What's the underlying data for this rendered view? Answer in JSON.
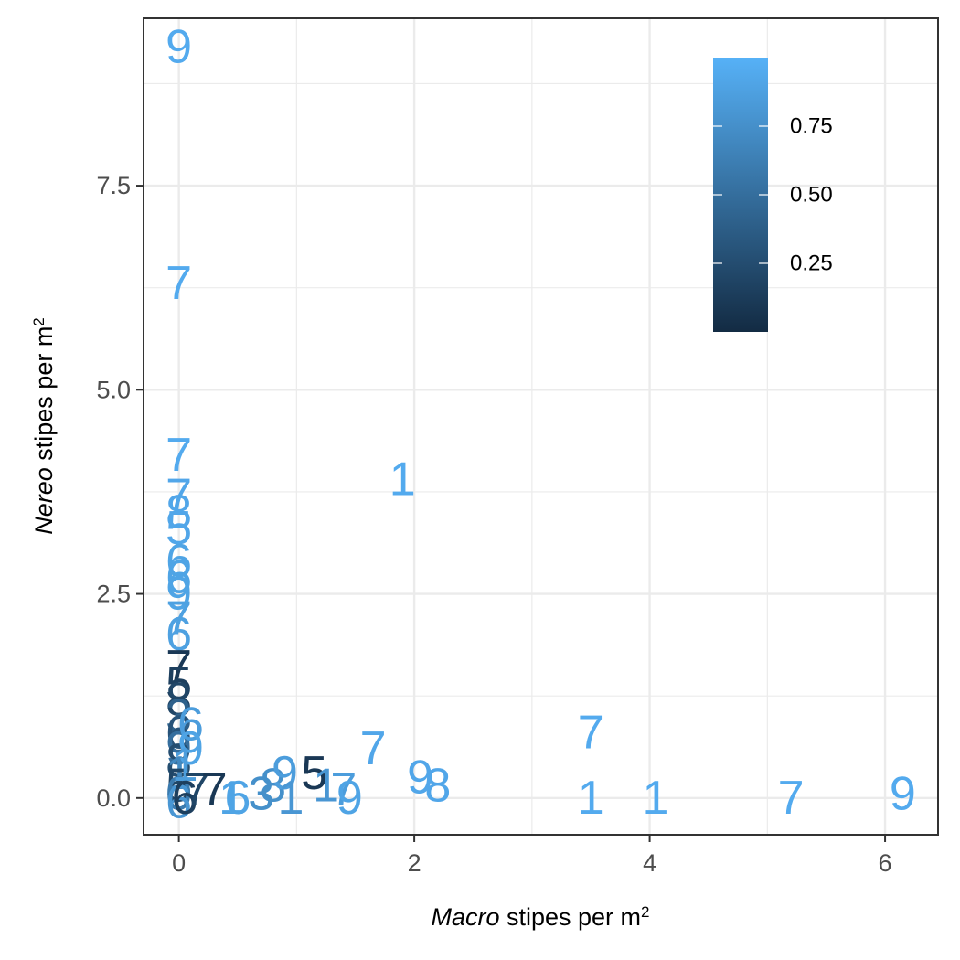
{
  "chart_data": {
    "type": "scatter",
    "title": "",
    "xlabel": {
      "italic": "Macro",
      "rest": " stipes per m",
      "sup": "2"
    },
    "ylabel": {
      "italic": "Nereo",
      "rest": " stipes per m",
      "sup": "2"
    },
    "xlim": [
      -0.3,
      6.45
    ],
    "ylim": [
      -0.45,
      9.55
    ],
    "x_ticks": [
      0,
      2,
      4,
      6
    ],
    "x_tick_labels": [
      "0",
      "2",
      "4",
      "6"
    ],
    "y_ticks": [
      0,
      2.5,
      5,
      7.5
    ],
    "y_tick_labels": [
      "0.0",
      "2.5",
      "5.0",
      "7.5"
    ],
    "grid": true,
    "legend": {
      "position": "top-right",
      "type": "colorbar",
      "range": [
        0,
        1
      ],
      "breaks": [
        0.75,
        0.5,
        0.25
      ],
      "break_labels": [
        "0.75",
        "0.50",
        "0.25"
      ],
      "low_color": "#132B43",
      "high_color": "#56B1F7"
    },
    "points": [
      {
        "x": 0,
        "y": 9.2,
        "label": "9",
        "value": 0.95
      },
      {
        "x": 0,
        "y": 6.3,
        "label": "7",
        "value": 0.95
      },
      {
        "x": 0,
        "y": 4.2,
        "label": "7",
        "value": 0.95
      },
      {
        "x": 0,
        "y": 3.7,
        "label": "7",
        "value": 0.92
      },
      {
        "x": 0,
        "y": 3.5,
        "label": "8",
        "value": 0.92
      },
      {
        "x": 0,
        "y": 3.3,
        "label": "5",
        "value": 0.92
      },
      {
        "x": 0,
        "y": 2.9,
        "label": "6",
        "value": 0.9
      },
      {
        "x": 0,
        "y": 2.7,
        "label": "6",
        "value": 0.9
      },
      {
        "x": 0,
        "y": 2.5,
        "label": "9",
        "value": 0.9
      },
      {
        "x": 0,
        "y": 2.2,
        "label": "7",
        "value": 0.88
      },
      {
        "x": 0,
        "y": 2.0,
        "label": "6",
        "value": 0.88
      },
      {
        "x": 0,
        "y": 1.6,
        "label": "7",
        "value": 0.1
      },
      {
        "x": 0,
        "y": 1.4,
        "label": "5",
        "value": 0.15
      },
      {
        "x": 0,
        "y": 1.2,
        "label": "8",
        "value": 0.2
      },
      {
        "x": 0,
        "y": 1.0,
        "label": "3",
        "value": 0.4
      },
      {
        "x": 0,
        "y": 0.8,
        "label": "6",
        "value": 0.3
      },
      {
        "x": 0,
        "y": 0.6,
        "label": "9",
        "value": 0.5
      },
      {
        "x": 0,
        "y": 0.45,
        "label": "8",
        "value": 0.25
      },
      {
        "x": 0,
        "y": 0.3,
        "label": "1",
        "value": 0.7
      },
      {
        "x": 0,
        "y": 0.15,
        "label": "5",
        "value": 0.2
      },
      {
        "x": 0,
        "y": 0.05,
        "label": "0",
        "value": 0.6
      },
      {
        "x": 0,
        "y": -0.05,
        "label": "6",
        "value": 0.8
      },
      {
        "x": 0.1,
        "y": 0.9,
        "label": "6",
        "value": 0.85
      },
      {
        "x": 0.1,
        "y": 0.6,
        "label": "9",
        "value": 0.9
      },
      {
        "x": 0.05,
        "y": 0.4,
        "label": "1",
        "value": 0.85
      },
      {
        "x": 0.05,
        "y": 0.0,
        "label": "6",
        "value": 0.15
      },
      {
        "x": 0.15,
        "y": 0.1,
        "label": "7",
        "value": 0.2
      },
      {
        "x": 0.3,
        "y": 0.1,
        "label": "7",
        "value": 0.1
      },
      {
        "x": 0.45,
        "y": 0.0,
        "label": "1",
        "value": 0.9
      },
      {
        "x": 0.5,
        "y": 0.0,
        "label": "6",
        "value": 0.9
      },
      {
        "x": 0.7,
        "y": 0.05,
        "label": "3",
        "value": 0.75
      },
      {
        "x": 0.8,
        "y": 0.15,
        "label": "8",
        "value": 0.75
      },
      {
        "x": 0.9,
        "y": 0.3,
        "label": "9",
        "value": 0.85
      },
      {
        "x": 0.95,
        "y": 0.0,
        "label": "1",
        "value": 0.8
      },
      {
        "x": 1.15,
        "y": 0.3,
        "label": "5",
        "value": 0.1
      },
      {
        "x": 1.25,
        "y": 0.15,
        "label": "1",
        "value": 0.8
      },
      {
        "x": 1.4,
        "y": 0.1,
        "label": "7",
        "value": 0.85
      },
      {
        "x": 1.45,
        "y": 0.0,
        "label": "9",
        "value": 0.9
      },
      {
        "x": 1.65,
        "y": 0.6,
        "label": "7",
        "value": 0.92
      },
      {
        "x": 1.9,
        "y": 3.9,
        "label": "1",
        "value": 0.95
      },
      {
        "x": 2.05,
        "y": 0.25,
        "label": "9",
        "value": 0.92
      },
      {
        "x": 2.2,
        "y": 0.15,
        "label": "8",
        "value": 0.92
      },
      {
        "x": 3.5,
        "y": 0.8,
        "label": "7",
        "value": 0.95
      },
      {
        "x": 3.5,
        "y": 0.0,
        "label": "1",
        "value": 0.95
      },
      {
        "x": 4.05,
        "y": 0.0,
        "label": "1",
        "value": 0.95
      },
      {
        "x": 5.2,
        "y": 0.0,
        "label": "7",
        "value": 0.95
      },
      {
        "x": 6.15,
        "y": 0.05,
        "label": "9",
        "value": 0.95
      }
    ]
  }
}
